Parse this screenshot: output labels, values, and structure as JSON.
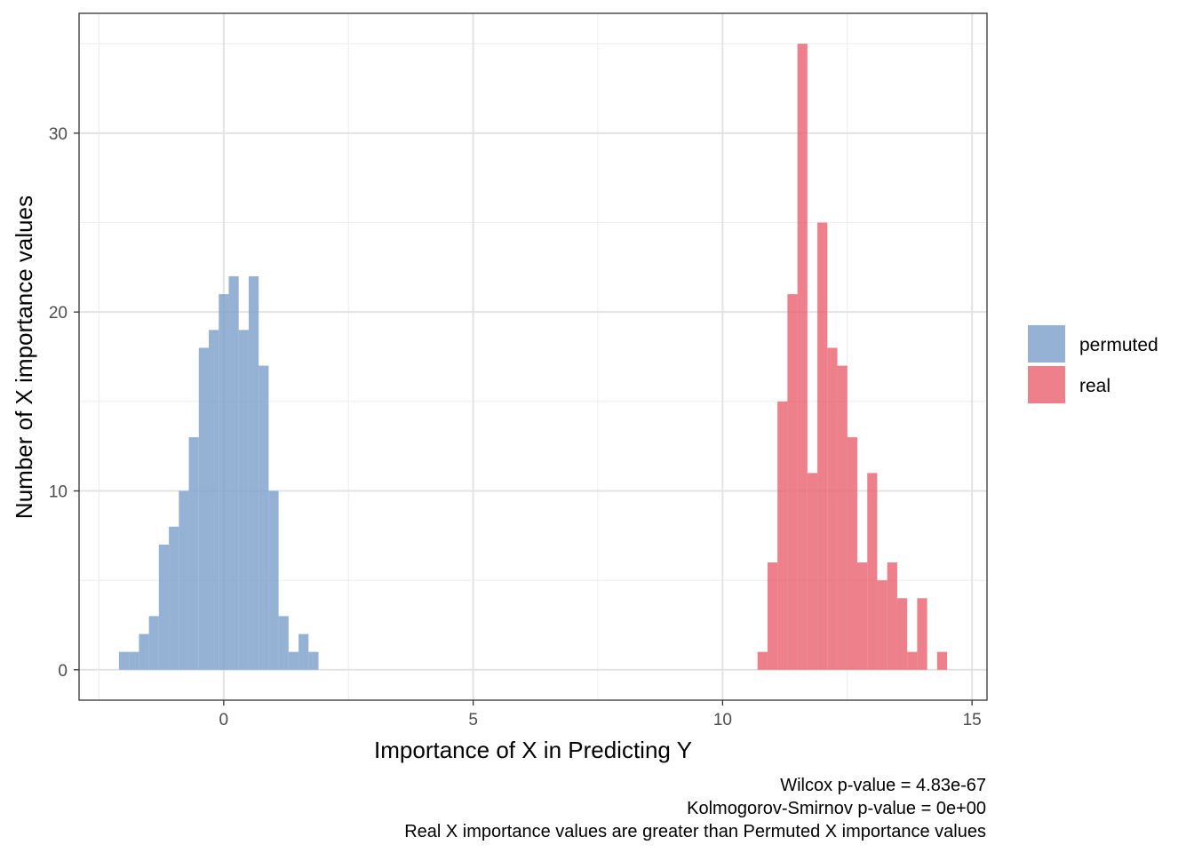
{
  "chart_data": {
    "type": "bar",
    "subtype": "histogram",
    "xlabel": "Importance of X in Predicting Y",
    "ylabel": "Number of X importance values",
    "xlim": [
      -2.9,
      15.3
    ],
    "ylim": [
      -1.7,
      36.7
    ],
    "x_ticks": [
      0,
      5,
      10,
      15
    ],
    "y_ticks": [
      0,
      10,
      20,
      30
    ],
    "grid": true,
    "legend_position": "right",
    "series": [
      {
        "name": "permuted",
        "color": "#7A9FC9",
        "bins": [
          {
            "x0": -2.1,
            "x1": -1.9,
            "count": 1
          },
          {
            "x0": -1.9,
            "x1": -1.7,
            "count": 1
          },
          {
            "x0": -1.7,
            "x1": -1.5,
            "count": 2
          },
          {
            "x0": -1.5,
            "x1": -1.3,
            "count": 3
          },
          {
            "x0": -1.3,
            "x1": -1.1,
            "count": 7
          },
          {
            "x0": -1.1,
            "x1": -0.9,
            "count": 8
          },
          {
            "x0": -0.9,
            "x1": -0.7,
            "count": 10
          },
          {
            "x0": -0.7,
            "x1": -0.5,
            "count": 13
          },
          {
            "x0": -0.5,
            "x1": -0.3,
            "count": 18
          },
          {
            "x0": -0.3,
            "x1": -0.1,
            "count": 19
          },
          {
            "x0": -0.1,
            "x1": 0.1,
            "count": 21
          },
          {
            "x0": 0.1,
            "x1": 0.3,
            "count": 22
          },
          {
            "x0": 0.3,
            "x1": 0.5,
            "count": 19
          },
          {
            "x0": 0.5,
            "x1": 0.7,
            "count": 22
          },
          {
            "x0": 0.7,
            "x1": 0.9,
            "count": 17
          },
          {
            "x0": 0.9,
            "x1": 1.1,
            "count": 10
          },
          {
            "x0": 1.1,
            "x1": 1.3,
            "count": 3
          },
          {
            "x0": 1.3,
            "x1": 1.5,
            "count": 1
          },
          {
            "x0": 1.5,
            "x1": 1.7,
            "count": 2
          },
          {
            "x0": 1.7,
            "x1": 1.9,
            "count": 1
          }
        ]
      },
      {
        "name": "real",
        "color": "#E8606E",
        "bins": [
          {
            "x0": 10.7,
            "x1": 10.9,
            "count": 1
          },
          {
            "x0": 10.9,
            "x1": 11.1,
            "count": 6
          },
          {
            "x0": 11.1,
            "x1": 11.3,
            "count": 15
          },
          {
            "x0": 11.3,
            "x1": 11.5,
            "count": 21
          },
          {
            "x0": 11.5,
            "x1": 11.7,
            "count": 35
          },
          {
            "x0": 11.7,
            "x1": 11.9,
            "count": 11
          },
          {
            "x0": 11.9,
            "x1": 12.1,
            "count": 25
          },
          {
            "x0": 12.1,
            "x1": 12.3,
            "count": 18
          },
          {
            "x0": 12.3,
            "x1": 12.5,
            "count": 17
          },
          {
            "x0": 12.5,
            "x1": 12.7,
            "count": 13
          },
          {
            "x0": 12.7,
            "x1": 12.9,
            "count": 6
          },
          {
            "x0": 12.9,
            "x1": 13.1,
            "count": 11
          },
          {
            "x0": 13.1,
            "x1": 13.3,
            "count": 5
          },
          {
            "x0": 13.3,
            "x1": 13.5,
            "count": 6
          },
          {
            "x0": 13.5,
            "x1": 13.7,
            "count": 4
          },
          {
            "x0": 13.7,
            "x1": 13.9,
            "count": 1
          },
          {
            "x0": 13.9,
            "x1": 14.1,
            "count": 4
          },
          {
            "x0": 14.1,
            "x1": 14.3,
            "count": 0
          },
          {
            "x0": 14.3,
            "x1": 14.5,
            "count": 1
          }
        ]
      }
    ],
    "annotations": [
      "Wilcox p-value = 4.83e-67",
      "Kolmogorov-Smirnov p-value = 0e+00",
      "Real X importance values are greater than Permuted X importance values"
    ]
  }
}
